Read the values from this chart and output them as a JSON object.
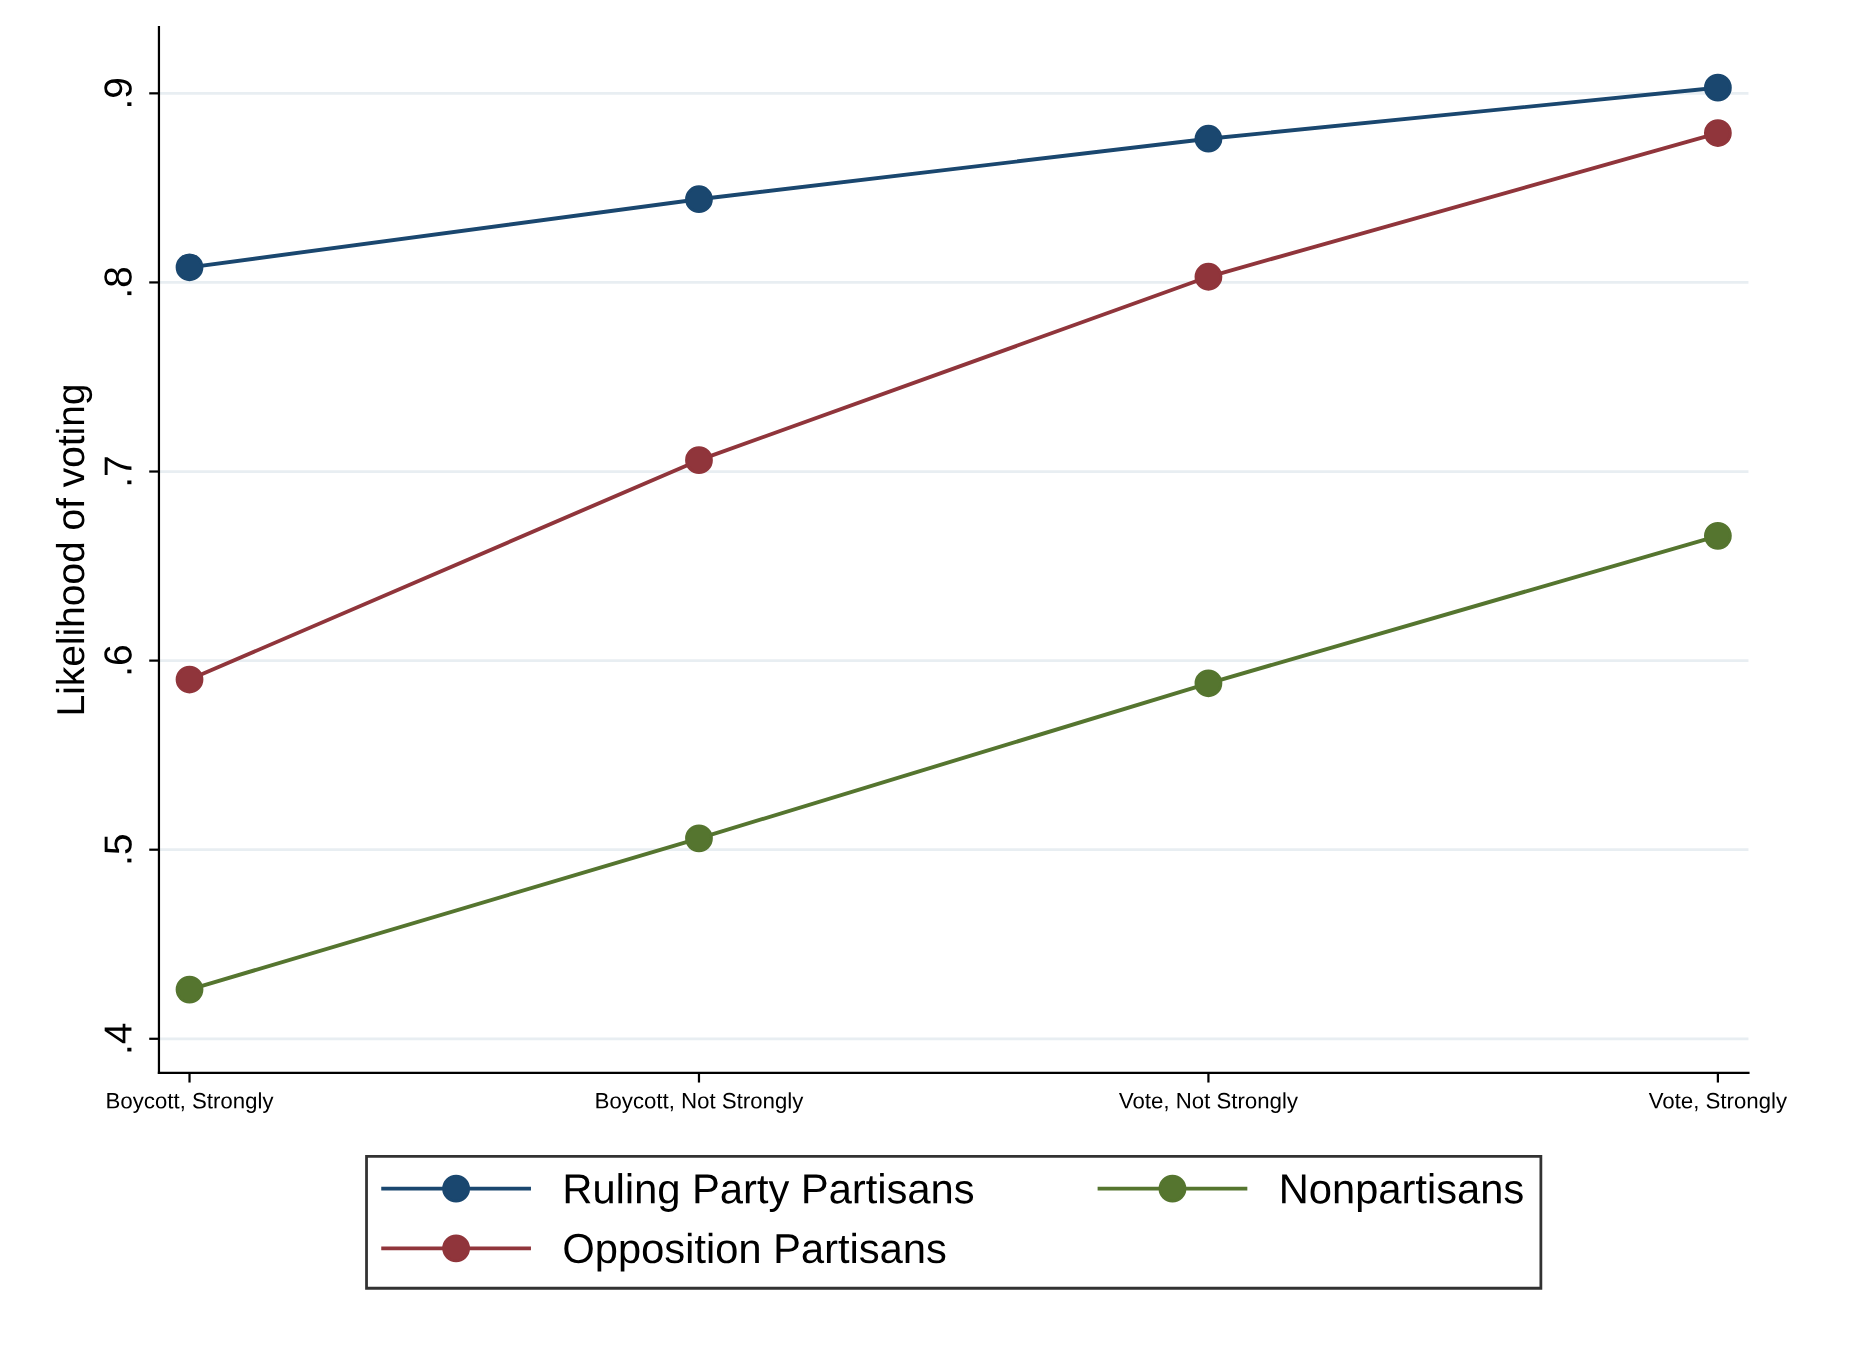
{
  "chart_data": {
    "type": "line",
    "ylabel": "Likelihood of voting",
    "categories": [
      "Boycott, Strongly",
      "Boycott, Not Strongly",
      "Vote, Not Strongly",
      "Vote, Strongly"
    ],
    "series": [
      {
        "name": "Ruling Party Partisans",
        "color": "#1a476f",
        "values": [
          0.808,
          0.844,
          0.876,
          0.903
        ]
      },
      {
        "name": "Opposition Partisans",
        "color": "#90353b",
        "values": [
          0.59,
          0.706,
          0.803,
          0.879
        ]
      },
      {
        "name": "Nonpartisans",
        "color": "#55752f",
        "values": [
          0.426,
          0.506,
          0.588,
          0.666
        ]
      }
    ],
    "ylim": [
      0.382,
      0.935
    ],
    "yticks": [
      {
        "value": 0.4,
        "label": ".4"
      },
      {
        "value": 0.5,
        "label": ".5"
      },
      {
        "value": 0.6,
        "label": ".6"
      },
      {
        "value": 0.7,
        "label": ".7"
      },
      {
        "value": 0.8,
        "label": ".8"
      },
      {
        "value": 0.9,
        "label": ".9"
      }
    ],
    "grid": "y",
    "legend": "bottom",
    "marker": "circle",
    "line_style": "solid"
  }
}
